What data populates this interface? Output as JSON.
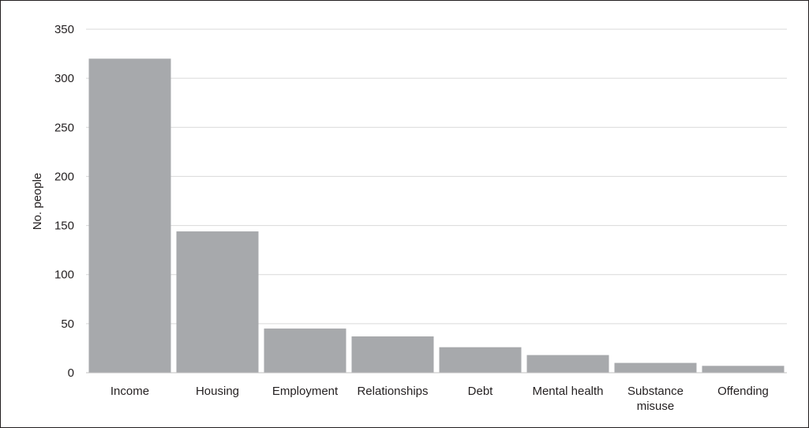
{
  "chart_data": {
    "type": "bar",
    "title": "",
    "xlabel": "",
    "ylabel": "No. people",
    "ylim": [
      0,
      350
    ],
    "yticks": [
      0,
      50,
      100,
      150,
      200,
      250,
      300,
      350
    ],
    "grid": true,
    "legend": "none",
    "categories": [
      [
        "Income"
      ],
      [
        "Housing"
      ],
      [
        "Employment"
      ],
      [
        "Relationships"
      ],
      [
        "Debt"
      ],
      [
        "Mental health"
      ],
      [
        "Substance",
        "misuse"
      ],
      [
        "Offending"
      ]
    ],
    "values": [
      320,
      144,
      45,
      37,
      26,
      18,
      10,
      7
    ],
    "colors": {
      "bar": "#a7a9ac",
      "grid": "#d9d9d9",
      "axis": "#bfbfbf",
      "text": "#231f20"
    }
  }
}
